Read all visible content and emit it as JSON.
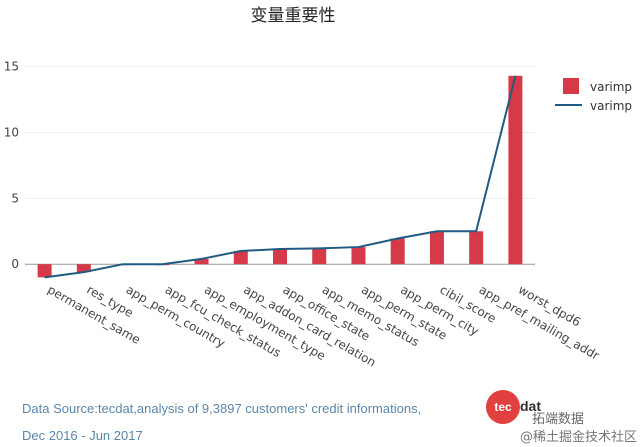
{
  "chart_data": {
    "type": "bar",
    "title": "变量重要性",
    "categories": [
      "permanent_same",
      "res_type",
      "app_perm_country",
      "app_fcu_check_status",
      "app_employment_type",
      "app_addon_card_relation",
      "app_office_state",
      "app_memo_status",
      "app_perm_state",
      "app_perm_city",
      "cibil_score",
      "app_pref_mailing_addr",
      "worst_dpd6"
    ],
    "series": [
      {
        "name": "varimp",
        "type": "bar",
        "color": "#d63a48",
        "values": [
          -1.0,
          -0.6,
          0.0,
          0.0,
          0.4,
          1.0,
          1.15,
          1.2,
          1.3,
          1.95,
          2.5,
          2.5,
          14.3
        ]
      },
      {
        "name": "varimp",
        "type": "line",
        "color": "#1f5b82",
        "values": [
          -1.0,
          -0.6,
          0.0,
          0.0,
          0.4,
          1.0,
          1.15,
          1.2,
          1.3,
          1.95,
          2.5,
          2.5,
          14.3
        ]
      }
    ],
    "yticks": [
      0,
      5,
      10,
      15
    ],
    "ylim": [
      -1.2,
      15.5
    ],
    "grid": true,
    "legend_position": "top-right",
    "xlabel": "",
    "ylabel": ""
  },
  "footer": {
    "source_line1": "Data Source:tecdat,analysis of 9,3897 customers' credit informations,",
    "source_line2": "Dec 2016 - Jun 2017"
  },
  "logo": {
    "text": "tec",
    "tail": "dat"
  },
  "watermark": {
    "line1": "拓端数据",
    "line2": "@稀土掘金技术社区"
  }
}
